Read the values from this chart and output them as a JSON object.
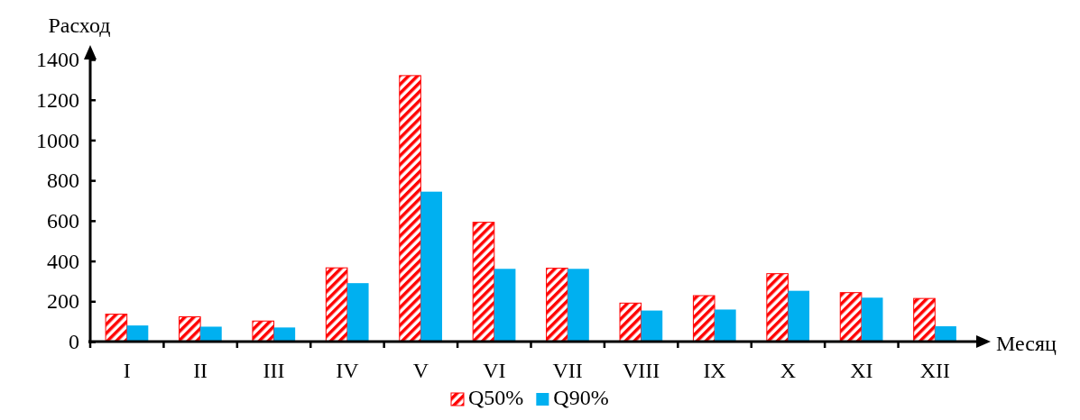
{
  "chart_data": {
    "type": "bar",
    "ylabel": "Расход",
    "xlabel": "Месяц",
    "categories": [
      "I",
      "II",
      "III",
      "IV",
      "V",
      "VI",
      "VII",
      "VIII",
      "IX",
      "X",
      "XI",
      "XII"
    ],
    "series": [
      {
        "name": "Q50%",
        "color": "#ff0000",
        "values": [
          136,
          123,
          102,
          366,
          1320,
          592,
          364,
          191,
          228,
          337,
          243,
          214
        ]
      },
      {
        "name": "Q90%",
        "color": "#00b0f0",
        "values": [
          80,
          74,
          70,
          290,
          744,
          361,
          361,
          154,
          159,
          252,
          218,
          76
        ]
      }
    ],
    "ylim": [
      0,
      1400
    ],
    "yticks": [
      0,
      200,
      400,
      600,
      800,
      1000,
      1200,
      1400
    ],
    "grid": false,
    "legend": "bottom"
  }
}
